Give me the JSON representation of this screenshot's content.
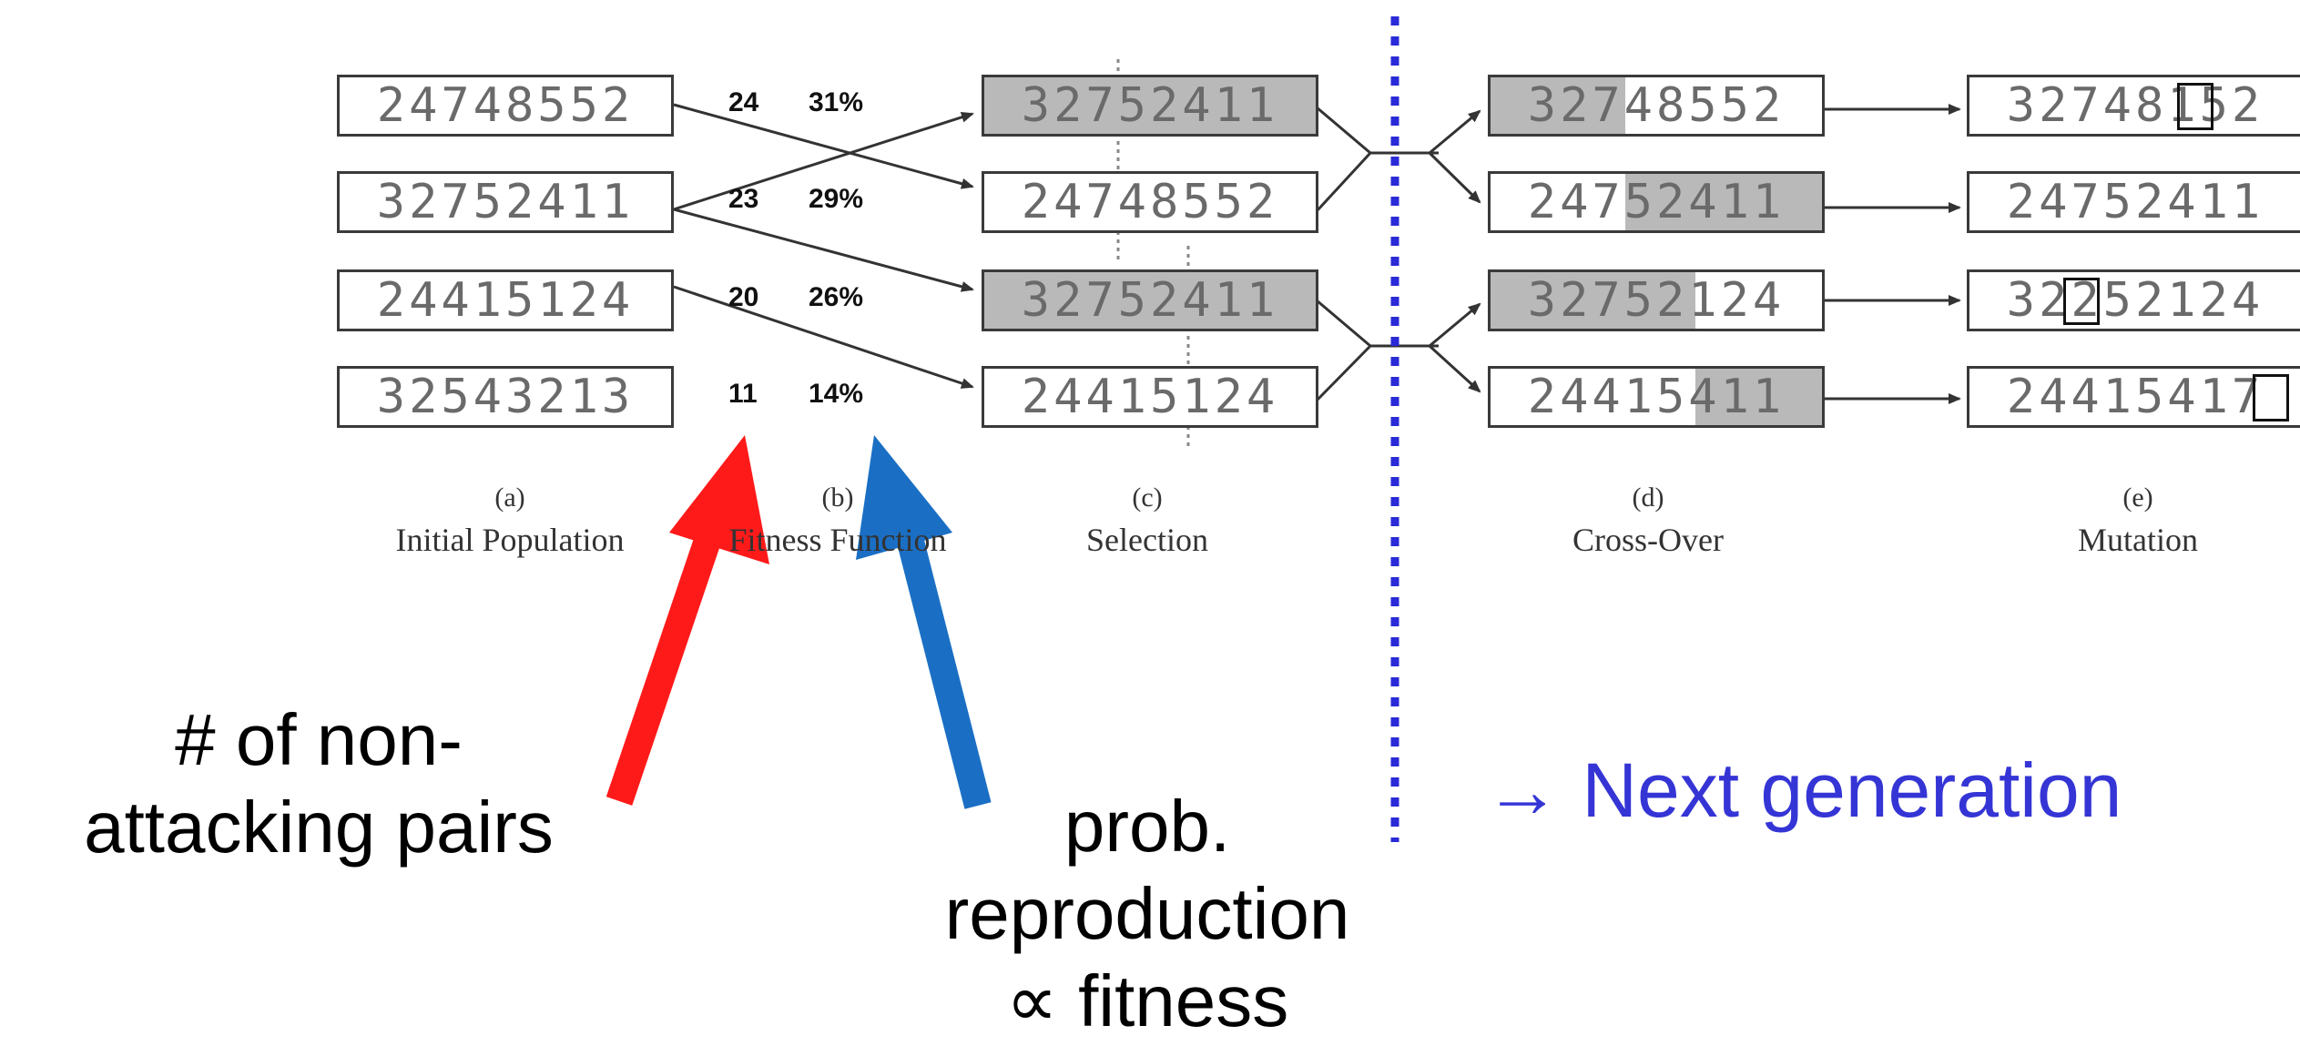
{
  "colors": {
    "red_arrow": "#ff1a1a",
    "blue_arrow": "#1a6fc4",
    "divider": "#2a2ad8",
    "next_generation_text": "#3535d6",
    "shaded_segment": "#b9b9b9"
  },
  "initial_population": [
    "24748552",
    "32752411",
    "24415124",
    "32543213"
  ],
  "fitness": [
    {
      "score": "24",
      "percent": "31%"
    },
    {
      "score": "23",
      "percent": "29%"
    },
    {
      "score": "20",
      "percent": "26%"
    },
    {
      "score": "11",
      "percent": "14%"
    }
  ],
  "selection": [
    {
      "value": "32752411",
      "shaded": true
    },
    {
      "value": "24748552",
      "shaded": false
    },
    {
      "value": "32752411",
      "shaded": true
    },
    {
      "value": "24415124",
      "shaded": false
    }
  ],
  "crossover": [
    {
      "value": "32748552",
      "shade_part": "left"
    },
    {
      "value": "24752411",
      "shade_part": "right"
    },
    {
      "value": "32752124",
      "shade_part": "left"
    },
    {
      "value": "24415411",
      "shade_part": "right"
    }
  ],
  "mutation": [
    {
      "value": "32748152",
      "mutated_digit": "1"
    },
    {
      "value": "24752411",
      "mutated_digit": ""
    },
    {
      "value": "32252124",
      "mutated_digit": "2"
    },
    {
      "value": "24415417",
      "mutated_digit": "7"
    }
  ],
  "captions": {
    "a": {
      "letter": "(a)",
      "name": "Initial Population"
    },
    "b": {
      "letter": "(b)",
      "name": "Fitness Function"
    },
    "c": {
      "letter": "(c)",
      "name": "Selection"
    },
    "d": {
      "letter": "(d)",
      "name": "Cross-Over"
    },
    "e": {
      "letter": "(e)",
      "name": "Mutation"
    }
  },
  "annotations": {
    "non_attacking_line1": "# of non-",
    "non_attacking_line2": "attacking pairs",
    "prob_line1": "prob.",
    "prob_line2": "reproduction",
    "prob_line3": "∝ fitness",
    "next_generation": "→ Next generation"
  }
}
